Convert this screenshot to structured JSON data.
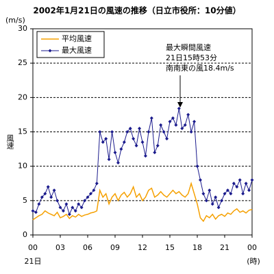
{
  "chart_data": {
    "type": "line",
    "title": "2002年1月21日の風速の推移（日立市役所：10分値）",
    "y_unit": "(m/s)",
    "ylabel": "風速",
    "x_sublabel": "21日",
    "x_unit": "(時)",
    "annotation": [
      "最大瞬間風速",
      "21日15時53分",
      "南南東の風18.4m/s"
    ],
    "x": [
      0,
      20,
      40,
      60,
      80,
      100,
      120,
      140,
      160,
      180,
      200,
      220,
      240,
      260,
      280,
      300,
      320,
      340,
      360,
      380,
      400,
      420,
      440,
      460,
      480,
      500,
      520,
      540,
      560,
      580,
      600,
      620,
      640,
      660,
      680,
      700,
      720,
      740,
      760,
      780,
      800,
      820,
      840,
      860,
      880,
      900,
      920,
      940,
      960,
      980,
      1000,
      1020,
      1040,
      1060,
      1080,
      1100,
      1120,
      1140,
      1160,
      1180,
      1200,
      1220,
      1240,
      1260,
      1280,
      1300,
      1320,
      1340,
      1360,
      1380,
      1400,
      1420,
      1440
    ],
    "series": [
      {
        "name": "平均風速",
        "color": "#f5a000",
        "values": [
          2.2,
          2.5,
          2.8,
          3.0,
          3.5,
          3.2,
          3.0,
          2.8,
          3.3,
          2.5,
          2.7,
          3.0,
          2.4,
          2.8,
          2.6,
          3.0,
          2.7,
          2.9,
          3.0,
          3.2,
          3.3,
          3.5,
          6.5,
          5.5,
          6.0,
          4.5,
          5.5,
          6.0,
          5.0,
          5.8,
          6.2,
          5.5,
          6.0,
          7.0,
          5.5,
          6.0,
          5.0,
          5.5,
          6.5,
          6.8,
          5.5,
          5.8,
          6.3,
          5.8,
          5.5,
          6.0,
          6.5,
          6.0,
          6.3,
          5.8,
          5.5,
          6.0,
          7.5,
          6.0,
          4.5,
          2.5,
          2.0,
          2.8,
          2.5,
          3.0,
          2.3,
          2.8,
          3.0,
          2.7,
          3.2,
          3.0,
          3.5,
          3.8,
          3.3,
          3.5,
          3.2,
          3.6,
          3.7
        ]
      },
      {
        "name": "最大風速",
        "color": "#1a1a8c",
        "values": [
          3.5,
          3.3,
          4.5,
          5.5,
          6.0,
          7.0,
          5.5,
          6.5,
          5.0,
          4.0,
          3.5,
          4.5,
          3.0,
          4.0,
          3.5,
          4.5,
          4.0,
          5.0,
          5.5,
          6.0,
          6.5,
          7.5,
          15.0,
          13.5,
          14.0,
          11.0,
          15.0,
          12.0,
          10.5,
          12.5,
          13.5,
          15.0,
          15.5,
          14.0,
          13.0,
          15.5,
          13.5,
          11.5,
          15.0,
          17.0,
          12.0,
          13.0,
          16.0,
          15.0,
          14.0,
          16.5,
          17.0,
          16.0,
          18.4,
          15.5,
          16.0,
          17.5,
          15.0,
          16.5,
          10.0,
          8.0,
          6.0,
          5.0,
          6.5,
          4.5,
          5.5,
          4.0,
          5.0,
          6.0,
          6.5,
          6.0,
          7.5,
          7.0,
          8.0,
          6.0,
          7.5,
          6.5,
          8.0
        ]
      }
    ],
    "xlim": [
      0,
      1440
    ],
    "xticks": [
      {
        "value": 0,
        "label": "00"
      },
      {
        "value": 180,
        "label": "03"
      },
      {
        "value": 360,
        "label": "06"
      },
      {
        "value": 540,
        "label": "09"
      },
      {
        "value": 720,
        "label": "12"
      },
      {
        "value": 900,
        "label": "15"
      },
      {
        "value": 1080,
        "label": "18"
      },
      {
        "value": 1260,
        "label": "21"
      },
      {
        "value": 1440,
        "label": "00"
      }
    ],
    "ylim": [
      0,
      30
    ],
    "yticks": [
      0,
      5,
      10,
      15,
      20,
      25,
      30
    ],
    "grid": true,
    "legend": "top-left"
  }
}
